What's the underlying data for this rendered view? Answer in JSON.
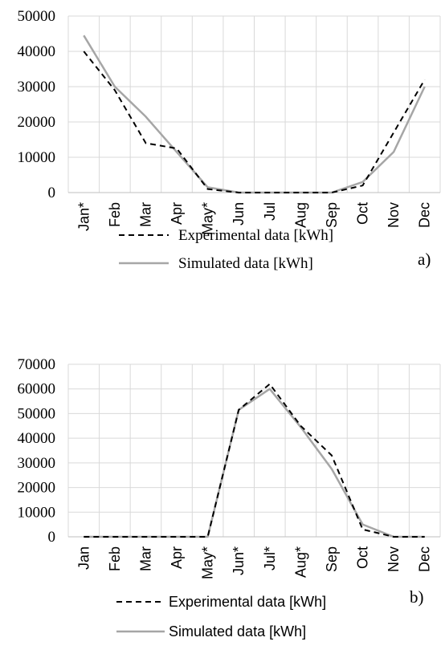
{
  "chart_data": [
    {
      "type": "line",
      "panel_label": "a)",
      "categories": [
        "Jan*",
        "Feb",
        "Mar",
        "Apr",
        "May*",
        "Jun",
        "Jul",
        "Aug",
        "Sep",
        "Oct",
        "Nov",
        "Dec"
      ],
      "yticks": [
        "0",
        "10000",
        "20000",
        "30000",
        "40000",
        "50000"
      ],
      "ylim": [
        0,
        50000
      ],
      "grid": true,
      "legend_position": "bottom",
      "series": [
        {
          "name": "Experimental data [kWh]",
          "style": "dashed",
          "color": "#000000",
          "values": [
            40000,
            29000,
            14000,
            12500,
            1000,
            0,
            0,
            0,
            0,
            2000,
            17000,
            32000
          ]
        },
        {
          "name": "Simulated data [kWh]",
          "style": "solid",
          "color": "#a6a6a6",
          "values": [
            44500,
            30000,
            21500,
            11500,
            1500,
            0,
            0,
            0,
            0,
            3000,
            11500,
            30000
          ]
        }
      ]
    },
    {
      "type": "line",
      "panel_label": "b)",
      "categories": [
        "Jan",
        "Feb",
        "Mar",
        "Apr",
        "May*",
        "Jun*",
        "Jul*",
        "Aug*",
        "Sep",
        "Oct",
        "Nov",
        "Dec"
      ],
      "yticks": [
        "0",
        "10000",
        "20000",
        "30000",
        "40000",
        "50000",
        "60000",
        "70000"
      ],
      "ylim": [
        0,
        70000
      ],
      "grid": true,
      "legend_position": "bottom",
      "series": [
        {
          "name": "Experimental data [kWh]",
          "style": "dashed",
          "color": "#000000",
          "values": [
            0,
            0,
            0,
            0,
            0,
            51500,
            62000,
            45000,
            33000,
            3000,
            0,
            0
          ]
        },
        {
          "name": "Simulated data [kWh]",
          "style": "solid",
          "color": "#a6a6a6",
          "values": [
            0,
            0,
            0,
            0,
            0,
            51500,
            60000,
            44500,
            27500,
            5000,
            0,
            0
          ]
        }
      ]
    }
  ]
}
